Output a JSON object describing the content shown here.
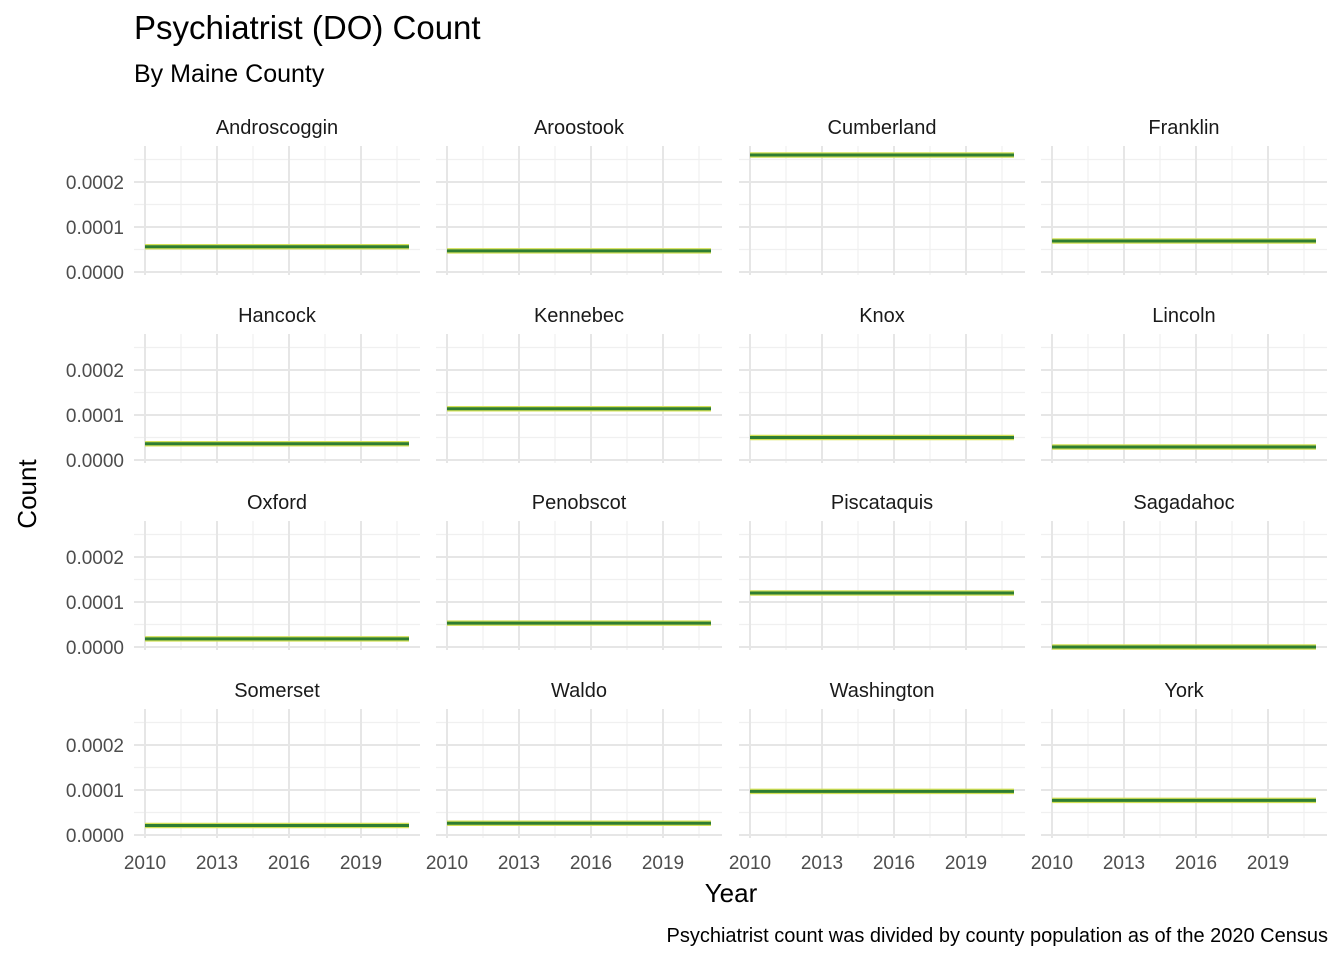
{
  "chart_data": {
    "type": "line",
    "title": "Psychiatrist (DO) Count",
    "subtitle": "By Maine County",
    "xlabel": "Year",
    "ylabel": "Count",
    "caption": "Psychiatrist count was divided by county population as of the 2020 Census",
    "xlim": [
      2010,
      2021
    ],
    "ylim": [
      0,
      0.00026
    ],
    "x_ticks": [
      2010,
      2013,
      2016,
      2019
    ],
    "x_tick_labels": [
      "2010",
      "2013",
      "2016",
      "2019"
    ],
    "y_ticks": [
      0,
      0.0001,
      0.0002
    ],
    "y_tick_labels": [
      "0.0000",
      "0.0001",
      "0.0002"
    ],
    "grid": true,
    "line_color": "#2e7d32",
    "line_outline_color": "#d4e157",
    "facets": [
      {
        "name": "Androscoggin",
        "x": [
          2010,
          2021
        ],
        "y": [
          5.6e-05,
          5.6e-05
        ]
      },
      {
        "name": "Aroostook",
        "x": [
          2010,
          2021
        ],
        "y": [
          4.7e-05,
          4.7e-05
        ]
      },
      {
        "name": "Cumberland",
        "x": [
          2010,
          2021
        ],
        "y": [
          0.00026,
          0.00026
        ]
      },
      {
        "name": "Franklin",
        "x": [
          2010,
          2021
        ],
        "y": [
          6.9e-05,
          6.9e-05
        ]
      },
      {
        "name": "Hancock",
        "x": [
          2010,
          2021
        ],
        "y": [
          3.6e-05,
          3.6e-05
        ]
      },
      {
        "name": "Kennebec",
        "x": [
          2010,
          2021
        ],
        "y": [
          0.000114,
          0.000114
        ]
      },
      {
        "name": "Knox",
        "x": [
          2010,
          2021
        ],
        "y": [
          5e-05,
          5e-05
        ]
      },
      {
        "name": "Lincoln",
        "x": [
          2010,
          2021
        ],
        "y": [
          2.9e-05,
          2.9e-05
        ]
      },
      {
        "name": "Oxford",
        "x": [
          2010,
          2021
        ],
        "y": [
          1.8e-05,
          1.8e-05
        ]
      },
      {
        "name": "Penobscot",
        "x": [
          2010,
          2021
        ],
        "y": [
          5.3e-05,
          5.3e-05
        ]
      },
      {
        "name": "Piscataquis",
        "x": [
          2010,
          2021
        ],
        "y": [
          0.00012,
          0.00012
        ]
      },
      {
        "name": "Sagadahoc",
        "x": [
          2010,
          2021
        ],
        "y": [
          0.0,
          0.0
        ]
      },
      {
        "name": "Somerset",
        "x": [
          2010,
          2021
        ],
        "y": [
          2.1e-05,
          2.1e-05
        ]
      },
      {
        "name": "Waldo",
        "x": [
          2010,
          2021
        ],
        "y": [
          2.6e-05,
          2.6e-05
        ]
      },
      {
        "name": "Washington",
        "x": [
          2010,
          2021
        ],
        "y": [
          9.7e-05,
          9.7e-05
        ]
      },
      {
        "name": "York",
        "x": [
          2010,
          2021
        ],
        "y": [
          7.7e-05,
          7.7e-05
        ]
      }
    ]
  }
}
